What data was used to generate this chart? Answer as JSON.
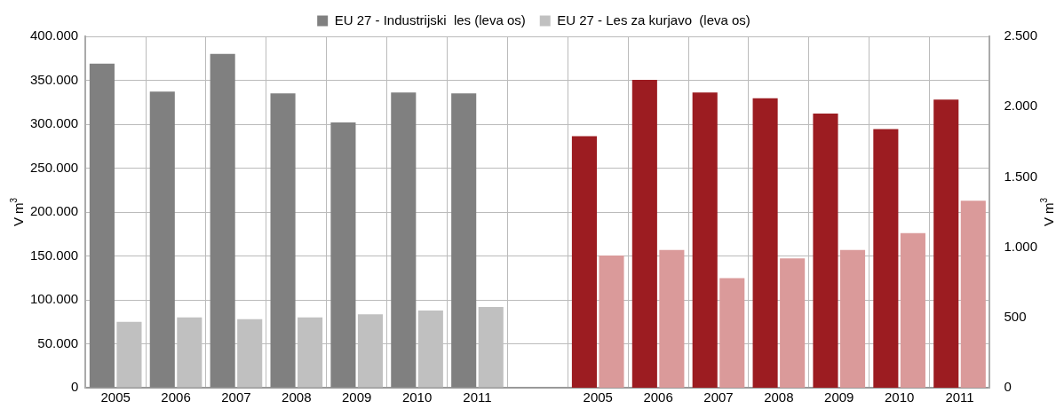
{
  "chart_data": {
    "type": "bar",
    "categories": [
      "2005",
      "2006",
      "2007",
      "2008",
      "2009",
      "2010",
      "2011",
      null,
      "2005",
      "2006",
      "2007",
      "2008",
      "2009",
      "2010",
      "2011"
    ],
    "ylabel": "V m$^{3}$",
    "y2label": "V m$^{3}$",
    "series": [
      {
        "name": "EU 27 - Industrijski  les (leva os)",
        "color": "#808080",
        "values": [
          369000,
          337000,
          380000,
          335000,
          302000,
          336000,
          335000,
          null,
          null,
          null,
          null,
          null,
          null,
          null,
          null
        ]
      },
      {
        "name": "EU 27 - Les za kurjavo  (leva os)",
        "color": "#c0c0c0",
        "values": [
          75000,
          80000,
          78000,
          80000,
          83500,
          88000,
          92000,
          null,
          null,
          null,
          null,
          null,
          null,
          null,
          null
        ]
      },
      {
        "color": "#9c1c21",
        "axis": "y2",
        "values": [
          null,
          null,
          null,
          null,
          null,
          null,
          null,
          null,
          1790,
          2190,
          2100,
          2060,
          1950,
          1840,
          2050
        ]
      },
      {
        "color": "#da9a9a",
        "axis": "y2",
        "values": [
          null,
          null,
          null,
          null,
          null,
          null,
          null,
          null,
          940,
          980,
          780,
          920,
          980,
          1100,
          1330
        ]
      }
    ],
    "ylim": [
      0,
      400000
    ],
    "yticks": [
      {
        "value": 0,
        "label": "0"
      },
      {
        "value": 50000,
        "label": "50.000"
      },
      {
        "value": 100000,
        "label": "100.000"
      },
      {
        "value": 150000,
        "label": "150.000"
      },
      {
        "value": 200000,
        "label": "200.000"
      },
      {
        "value": 250000,
        "label": "250.000"
      },
      {
        "value": 300000,
        "label": "300.000"
      },
      {
        "value": 350000,
        "label": "350.000"
      },
      {
        "value": 400000,
        "label": "400.000"
      }
    ],
    "y2lim": [
      0,
      2500
    ],
    "y2ticks": [
      {
        "value": 0,
        "label": "0"
      },
      {
        "value": 500,
        "label": "500"
      },
      {
        "value": 1000,
        "label": "1.000"
      },
      {
        "value": 1500,
        "label": "1.500"
      },
      {
        "value": 2000,
        "label": "2.000"
      },
      {
        "value": 2500,
        "label": "2.500"
      }
    ],
    "grid": true,
    "legend": "top"
  }
}
